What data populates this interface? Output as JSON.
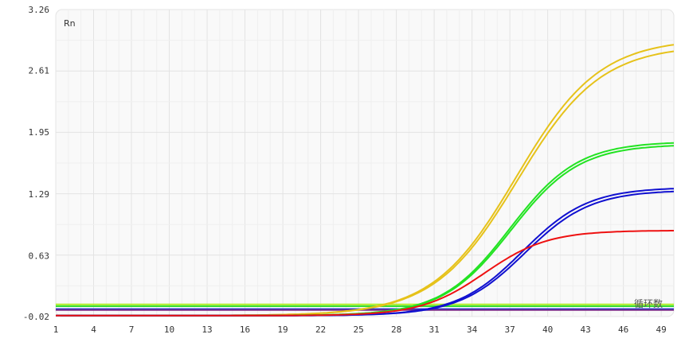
{
  "chart_data": {
    "type": "line",
    "ylabel": "Rn",
    "xlabel": "循环数",
    "xlim": [
      1,
      50
    ],
    "ylim": [
      -0.02,
      3.26
    ],
    "x_ticks": [
      "1",
      "4",
      "7",
      "10",
      "13",
      "16",
      "19",
      "22",
      "25",
      "28",
      "31",
      "34",
      "37",
      "40",
      "43",
      "46",
      "49"
    ],
    "y_ticks": [
      "3.26",
      "2.61",
      "1.95",
      "1.29",
      "0.63",
      "-0.02"
    ],
    "grid": true,
    "series": [
      {
        "color": "#e6c21a",
        "plateau": 2.96,
        "midpoint": 37.5,
        "slope": 3.3,
        "baseline": -0.01
      },
      {
        "color": "#e6c21a",
        "plateau": 2.89,
        "midpoint": 37.6,
        "slope": 3.3,
        "baseline": -0.01
      },
      {
        "color": "#22e322",
        "plateau": 1.86,
        "midpoint": 37.0,
        "slope": 2.7,
        "baseline": -0.01
      },
      {
        "color": "#22e322",
        "plateau": 1.83,
        "midpoint": 37.1,
        "slope": 2.7,
        "baseline": -0.01
      },
      {
        "color": "#1010d0",
        "plateau": 1.37,
        "midpoint": 38.0,
        "slope": 2.6,
        "baseline": -0.01
      },
      {
        "color": "#1010d0",
        "plateau": 1.34,
        "midpoint": 38.2,
        "slope": 2.6,
        "baseline": -0.01
      },
      {
        "color": "#ee1111",
        "plateau": 0.91,
        "midpoint": 35.0,
        "slope": 2.5,
        "baseline": -0.01
      }
    ],
    "thresholds": [
      {
        "value": 0.11,
        "color": "#aaee22"
      },
      {
        "value": 0.09,
        "color": "#33dd33"
      },
      {
        "value": 0.06,
        "color": "#1133cc"
      },
      {
        "value": 0.05,
        "color": "#7a2a8a"
      }
    ]
  }
}
